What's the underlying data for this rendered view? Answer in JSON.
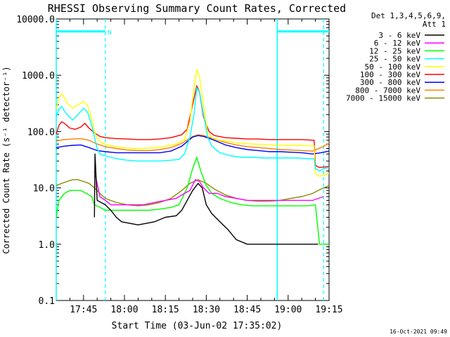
{
  "chart_data": {
    "type": "line",
    "title": "RHESSI Observing Summary Count Rates, Corrected",
    "xlabel": "Start Time (03-Jun-02 17:35:02)",
    "ylabel": "Corrected Count Rate (s⁻¹ detector⁻¹)",
    "y_scale": "log",
    "ylim": [
      0.1,
      10000
    ],
    "xlim_minutes": [
      0,
      100
    ],
    "x_ticks": [
      {
        "m": 10,
        "label": "17:45"
      },
      {
        "m": 25,
        "label": "18:00"
      },
      {
        "m": 40,
        "label": "18:15"
      },
      {
        "m": 55,
        "label": "18:30"
      },
      {
        "m": 70,
        "label": "18:45"
      },
      {
        "m": 85,
        "label": "19:00"
      },
      {
        "m": 100,
        "label": "19:15"
      }
    ],
    "y_ticks": [
      {
        "v": 0.1,
        "label": "0.1"
      },
      {
        "v": 1,
        "label": "1.0"
      },
      {
        "v": 10,
        "label": "10.0"
      },
      {
        "v": 100,
        "label": "100.0"
      },
      {
        "v": 1000,
        "label": "1000.0"
      },
      {
        "v": 10000,
        "label": "10000.0"
      }
    ],
    "legend_header": [
      "Det 1,3,4,5,6,9,",
      "Att 1"
    ],
    "legend_position": "right",
    "date_stamp": "16-Oct-2021 09:49",
    "annotations": [
      {
        "text": "N",
        "x_minute": 19.5,
        "y_value": 6000
      }
    ],
    "day_night": {
      "night_band_y": 6000,
      "segments": [
        [
          0,
          18
        ],
        [
          81,
          100
        ]
      ],
      "solid_lines": [
        0,
        81
      ],
      "dashed_lines": [
        18,
        98
      ]
    },
    "series": [
      {
        "name": "3 - 6 keV",
        "color": "#000000",
        "points": [
          [
            14,
            3
          ],
          [
            14.2,
            40
          ],
          [
            15,
            6
          ],
          [
            18,
            5
          ],
          [
            20,
            4
          ],
          [
            22,
            3
          ],
          [
            24,
            2.5
          ],
          [
            30,
            2.2
          ],
          [
            36,
            2.5
          ],
          [
            40,
            3
          ],
          [
            44,
            3.2
          ],
          [
            46,
            4
          ],
          [
            48,
            6
          ],
          [
            50,
            9
          ],
          [
            52,
            12
          ],
          [
            53.5,
            10
          ],
          [
            55,
            5
          ],
          [
            57,
            3.5
          ],
          [
            60,
            2.5
          ],
          [
            63,
            1.8
          ],
          [
            66,
            1.2
          ],
          [
            70,
            1
          ],
          [
            75,
            1
          ],
          [
            80,
            1
          ],
          [
            82,
            1
          ],
          [
            85,
            1
          ],
          [
            88,
            1
          ],
          [
            91,
            1
          ],
          [
            96,
            1
          ]
        ]
      },
      {
        "name": "6 - 12 keV",
        "color": "#ff00ff",
        "points": [
          [
            14,
            20
          ],
          [
            16,
            7
          ],
          [
            18,
            6
          ],
          [
            20,
            5
          ],
          [
            24,
            5
          ],
          [
            28,
            5
          ],
          [
            32,
            5
          ],
          [
            36,
            5.5
          ],
          [
            40,
            6
          ],
          [
            44,
            6.5
          ],
          [
            47,
            8
          ],
          [
            49,
            9
          ],
          [
            51,
            14
          ],
          [
            52.5,
            13
          ],
          [
            54,
            10
          ],
          [
            56,
            8
          ],
          [
            59,
            8
          ],
          [
            62,
            7
          ],
          [
            66,
            6.5
          ],
          [
            70,
            6
          ],
          [
            74,
            6
          ],
          [
            78,
            6
          ],
          [
            82,
            6
          ],
          [
            86,
            6
          ],
          [
            90,
            6
          ],
          [
            94,
            6
          ],
          [
            98,
            7
          ]
        ]
      },
      {
        "name": "12 - 25 keV",
        "color": "#00ff00",
        "points": [
          [
            0,
            3
          ],
          [
            1,
            6
          ],
          [
            3,
            8
          ],
          [
            5,
            9
          ],
          [
            7,
            9
          ],
          [
            9,
            9
          ],
          [
            11,
            8
          ],
          [
            13,
            7
          ],
          [
            14,
            5
          ],
          [
            16,
            4.5
          ],
          [
            18,
            4
          ],
          [
            22,
            4
          ],
          [
            26,
            4
          ],
          [
            30,
            4
          ],
          [
            34,
            4
          ],
          [
            38,
            4.2
          ],
          [
            42,
            4.5
          ],
          [
            45,
            5
          ],
          [
            48,
            10
          ],
          [
            50,
            22
          ],
          [
            51.5,
            35
          ],
          [
            53,
            20
          ],
          [
            55,
            11
          ],
          [
            57,
            8
          ],
          [
            60,
            6.5
          ],
          [
            64,
            5.5
          ],
          [
            68,
            5
          ],
          [
            72,
            4.8
          ],
          [
            76,
            4.8
          ],
          [
            80,
            4.8
          ],
          [
            84,
            4.8
          ],
          [
            88,
            4.8
          ],
          [
            92,
            4.8
          ],
          [
            95,
            5
          ],
          [
            96.5,
            1
          ],
          [
            100,
            1
          ]
        ]
      },
      {
        "name": "25 - 50 keV",
        "color": "#00ffff",
        "points": [
          [
            0,
            180
          ],
          [
            1,
            250
          ],
          [
            2,
            280
          ],
          [
            3,
            230
          ],
          [
            4,
            200
          ],
          [
            6,
            160
          ],
          [
            8,
            200
          ],
          [
            10,
            260
          ],
          [
            11.5,
            220
          ],
          [
            13,
            130
          ],
          [
            14,
            80
          ],
          [
            15,
            50
          ],
          [
            16,
            40
          ],
          [
            18,
            37
          ],
          [
            22,
            33
          ],
          [
            26,
            31
          ],
          [
            30,
            30
          ],
          [
            34,
            30
          ],
          [
            38,
            30
          ],
          [
            42,
            31
          ],
          [
            45,
            32
          ],
          [
            47,
            40
          ],
          [
            49,
            80
          ],
          [
            50.5,
            200
          ],
          [
            51.5,
            600
          ],
          [
            52.5,
            500
          ],
          [
            54,
            200
          ],
          [
            55.5,
            80
          ],
          [
            57,
            55
          ],
          [
            60,
            42
          ],
          [
            64,
            37
          ],
          [
            68,
            35
          ],
          [
            72,
            35
          ],
          [
            76,
            34
          ],
          [
            80,
            34
          ],
          [
            84,
            34
          ],
          [
            88,
            34
          ],
          [
            92,
            33
          ],
          [
            94.5,
            33
          ],
          [
            95,
            22
          ],
          [
            96.5,
            20
          ],
          [
            98,
            22
          ],
          [
            100,
            23
          ]
        ]
      },
      {
        "name": "50 - 100 keV",
        "color": "#ffff00",
        "points": [
          [
            0,
            250
          ],
          [
            1,
            400
          ],
          [
            2,
            470
          ],
          [
            3,
            400
          ],
          [
            4,
            320
          ],
          [
            6,
            260
          ],
          [
            8,
            300
          ],
          [
            10,
            340
          ],
          [
            11.5,
            290
          ],
          [
            13,
            170
          ],
          [
            14,
            100
          ],
          [
            15,
            75
          ],
          [
            17,
            62
          ],
          [
            20,
            56
          ],
          [
            24,
            52
          ],
          [
            28,
            50
          ],
          [
            32,
            50
          ],
          [
            36,
            52
          ],
          [
            40,
            55
          ],
          [
            44,
            60
          ],
          [
            47,
            72
          ],
          [
            49,
            150
          ],
          [
            50.5,
            600
          ],
          [
            51.5,
            1250
          ],
          [
            52.5,
            950
          ],
          [
            54,
            300
          ],
          [
            55.5,
            95
          ],
          [
            57,
            78
          ],
          [
            60,
            70
          ],
          [
            64,
            66
          ],
          [
            68,
            62
          ],
          [
            72,
            60
          ],
          [
            76,
            59
          ],
          [
            80,
            58
          ],
          [
            84,
            57
          ],
          [
            88,
            57
          ],
          [
            92,
            56
          ],
          [
            94.5,
            56
          ],
          [
            95,
            18
          ],
          [
            96.5,
            16
          ],
          [
            100,
            18
          ]
        ]
      },
      {
        "name": "100 - 300 keV",
        "color": "#ff0000",
        "points": [
          [
            0,
            90
          ],
          [
            1,
            130
          ],
          [
            2,
            150
          ],
          [
            3,
            140
          ],
          [
            5,
            115
          ],
          [
            7,
            110
          ],
          [
            9,
            120
          ],
          [
            10.5,
            140
          ],
          [
            12,
            115
          ],
          [
            14,
            95
          ],
          [
            16,
            82
          ],
          [
            18,
            78
          ],
          [
            22,
            75
          ],
          [
            26,
            74
          ],
          [
            30,
            72
          ],
          [
            34,
            72
          ],
          [
            38,
            74
          ],
          [
            42,
            78
          ],
          [
            46,
            88
          ],
          [
            48,
            110
          ],
          [
            50,
            300
          ],
          [
            51.5,
            650
          ],
          [
            52.5,
            500
          ],
          [
            54,
            180
          ],
          [
            56,
            100
          ],
          [
            58,
            85
          ],
          [
            62,
            78
          ],
          [
            66,
            76
          ],
          [
            70,
            74
          ],
          [
            74,
            74
          ],
          [
            78,
            72
          ],
          [
            82,
            72
          ],
          [
            86,
            72
          ],
          [
            90,
            72
          ],
          [
            94.5,
            70
          ],
          [
            95,
            25
          ],
          [
            96.5,
            23
          ],
          [
            100,
            24
          ]
        ]
      },
      {
        "name": "300 - 800 keV",
        "color": "#0000ff",
        "points": [
          [
            0,
            52
          ],
          [
            3,
            55
          ],
          [
            6,
            57
          ],
          [
            9,
            58
          ],
          [
            12,
            52
          ],
          [
            15,
            46
          ],
          [
            18,
            44
          ],
          [
            22,
            42
          ],
          [
            26,
            42
          ],
          [
            30,
            42
          ],
          [
            34,
            42
          ],
          [
            38,
            42
          ],
          [
            42,
            45
          ],
          [
            46,
            55
          ],
          [
            50,
            80
          ],
          [
            52,
            85
          ],
          [
            54,
            82
          ],
          [
            58,
            70
          ],
          [
            62,
            58
          ],
          [
            66,
            52
          ],
          [
            70,
            48
          ],
          [
            74,
            46
          ],
          [
            78,
            44
          ],
          [
            82,
            44
          ],
          [
            86,
            43
          ],
          [
            90,
            42
          ],
          [
            94,
            40
          ],
          [
            97,
            42
          ],
          [
            100,
            45
          ]
        ]
      },
      {
        "name": "800 - 7000 keV",
        "color": "#ff8000",
        "points": [
          [
            0,
            68
          ],
          [
            3,
            72
          ],
          [
            6,
            74
          ],
          [
            9,
            75
          ],
          [
            12,
            70
          ],
          [
            15,
            60
          ],
          [
            18,
            54
          ],
          [
            22,
            50
          ],
          [
            26,
            47
          ],
          [
            30,
            46
          ],
          [
            34,
            46
          ],
          [
            38,
            48
          ],
          [
            42,
            52
          ],
          [
            46,
            62
          ],
          [
            50,
            82
          ],
          [
            52,
            88
          ],
          [
            54,
            85
          ],
          [
            58,
            74
          ],
          [
            62,
            64
          ],
          [
            66,
            58
          ],
          [
            70,
            54
          ],
          [
            74,
            52
          ],
          [
            78,
            50
          ],
          [
            82,
            48
          ],
          [
            86,
            47
          ],
          [
            90,
            46
          ],
          [
            94,
            45
          ],
          [
            97,
            52
          ],
          [
            100,
            62
          ]
        ]
      },
      {
        "name": "7000 - 15000 keV",
        "color": "#8b8b00",
        "points": [
          [
            0,
            11
          ],
          [
            2,
            12
          ],
          [
            4,
            13
          ],
          [
            6,
            14
          ],
          [
            8,
            14
          ],
          [
            10,
            13
          ],
          [
            12,
            12
          ],
          [
            14,
            10
          ],
          [
            16,
            8
          ],
          [
            18,
            6.5
          ],
          [
            22,
            5.5
          ],
          [
            26,
            5
          ],
          [
            30,
            4.8
          ],
          [
            34,
            5
          ],
          [
            38,
            5.5
          ],
          [
            42,
            6.5
          ],
          [
            46,
            9
          ],
          [
            49,
            12
          ],
          [
            52,
            14
          ],
          [
            55,
            12
          ],
          [
            58,
            9.5
          ],
          [
            62,
            7.5
          ],
          [
            66,
            6.5
          ],
          [
            70,
            6
          ],
          [
            74,
            5.8
          ],
          [
            78,
            5.8
          ],
          [
            82,
            6
          ],
          [
            86,
            6.5
          ],
          [
            90,
            7
          ],
          [
            94,
            8
          ],
          [
            97,
            9.5
          ],
          [
            100,
            11
          ]
        ]
      }
    ]
  }
}
